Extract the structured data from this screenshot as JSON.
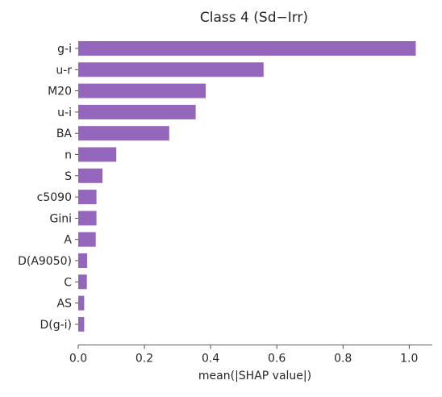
{
  "chart_data": {
    "type": "bar",
    "orientation": "horizontal",
    "title": "Class 4 (Sd−Irr)",
    "xlabel": "mean(|SHAP value|)",
    "ylabel": "",
    "xlim": [
      0,
      1.07
    ],
    "x_ticks": [
      "0.0",
      "0.2",
      "0.4",
      "0.6",
      "0.8",
      "1.0"
    ],
    "x_tick_values": [
      0.0,
      0.2,
      0.4,
      0.6,
      0.8,
      1.0
    ],
    "categories": [
      "g-i",
      "u-r",
      "M20",
      "u-i",
      "BA",
      "n",
      "S",
      "c5090",
      "Gini",
      "A",
      "D(A9050)",
      "C",
      "AS",
      "D(g-i)"
    ],
    "values": [
      1.02,
      0.56,
      0.385,
      0.355,
      0.275,
      0.115,
      0.073,
      0.055,
      0.055,
      0.053,
      0.027,
      0.026,
      0.018,
      0.018
    ],
    "bar_color": "#9467bd",
    "grid": false,
    "legend": "none"
  }
}
